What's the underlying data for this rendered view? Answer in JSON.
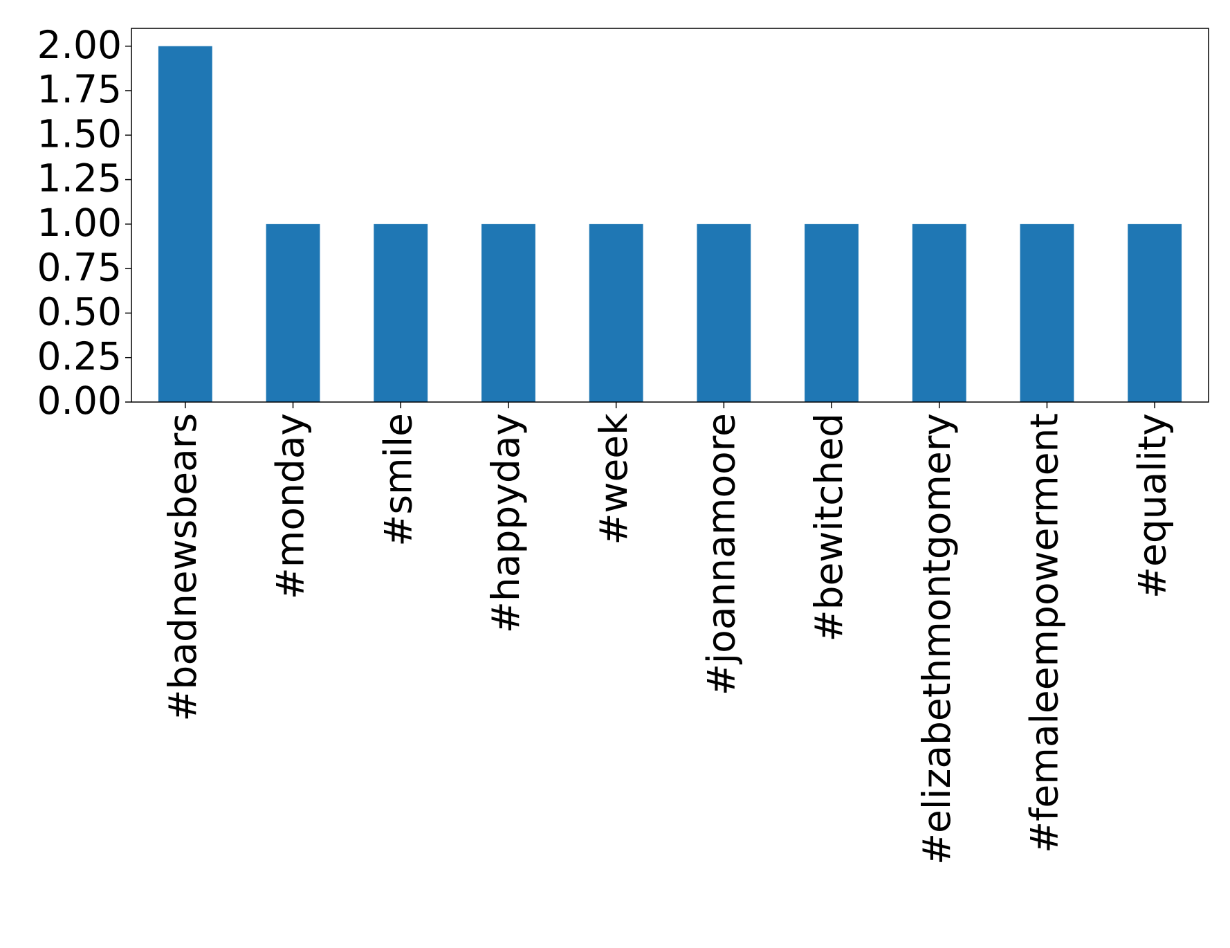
{
  "chart_data": {
    "type": "bar",
    "categories": [
      "#badnewsbears",
      "#monday",
      "#smile",
      "#happyday",
      "#week",
      "#joannamoore",
      "#bewitched",
      "#elizabethmontgomery",
      "#femaleempowerment",
      "#equality"
    ],
    "values": [
      2,
      1,
      1,
      1,
      1,
      1,
      1,
      1,
      1,
      1
    ],
    "color": "#1f77b4",
    "ylim": [
      0,
      2.1
    ],
    "yticks": [
      {
        "value": 0,
        "label": "0.00"
      },
      {
        "value": 0.25,
        "label": "0.25"
      },
      {
        "value": 0.5,
        "label": "0.50"
      },
      {
        "value": 0.75,
        "label": "0.75"
      },
      {
        "value": 1,
        "label": "1.00"
      },
      {
        "value": 1.25,
        "label": "1.25"
      },
      {
        "value": 1.5,
        "label": "1.50"
      },
      {
        "value": 1.75,
        "label": "1.75"
      },
      {
        "value": 2,
        "label": "2.00"
      }
    ],
    "grid": false
  }
}
